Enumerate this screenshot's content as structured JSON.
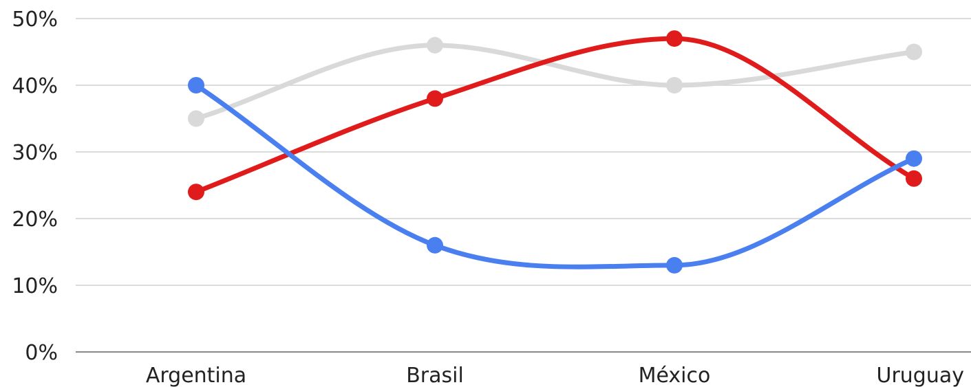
{
  "chart_data": {
    "type": "line",
    "smooth": true,
    "categories": [
      "Argentina",
      "Brasil",
      "México",
      "Uruguay"
    ],
    "y_tick_labels": [
      "0%",
      "10%",
      "20%",
      "30%",
      "40%",
      "50%"
    ],
    "ylim": [
      0,
      50
    ],
    "y_unit": "%",
    "grid": true,
    "legend": "none",
    "series": [
      {
        "color": "#d9d9d9",
        "values": [
          35,
          46,
          40,
          45
        ]
      },
      {
        "color": "#e01b1b",
        "values": [
          24,
          38,
          47,
          26
        ]
      },
      {
        "color": "#4a7ff0",
        "values": [
          40,
          16,
          13,
          29
        ]
      }
    ]
  }
}
